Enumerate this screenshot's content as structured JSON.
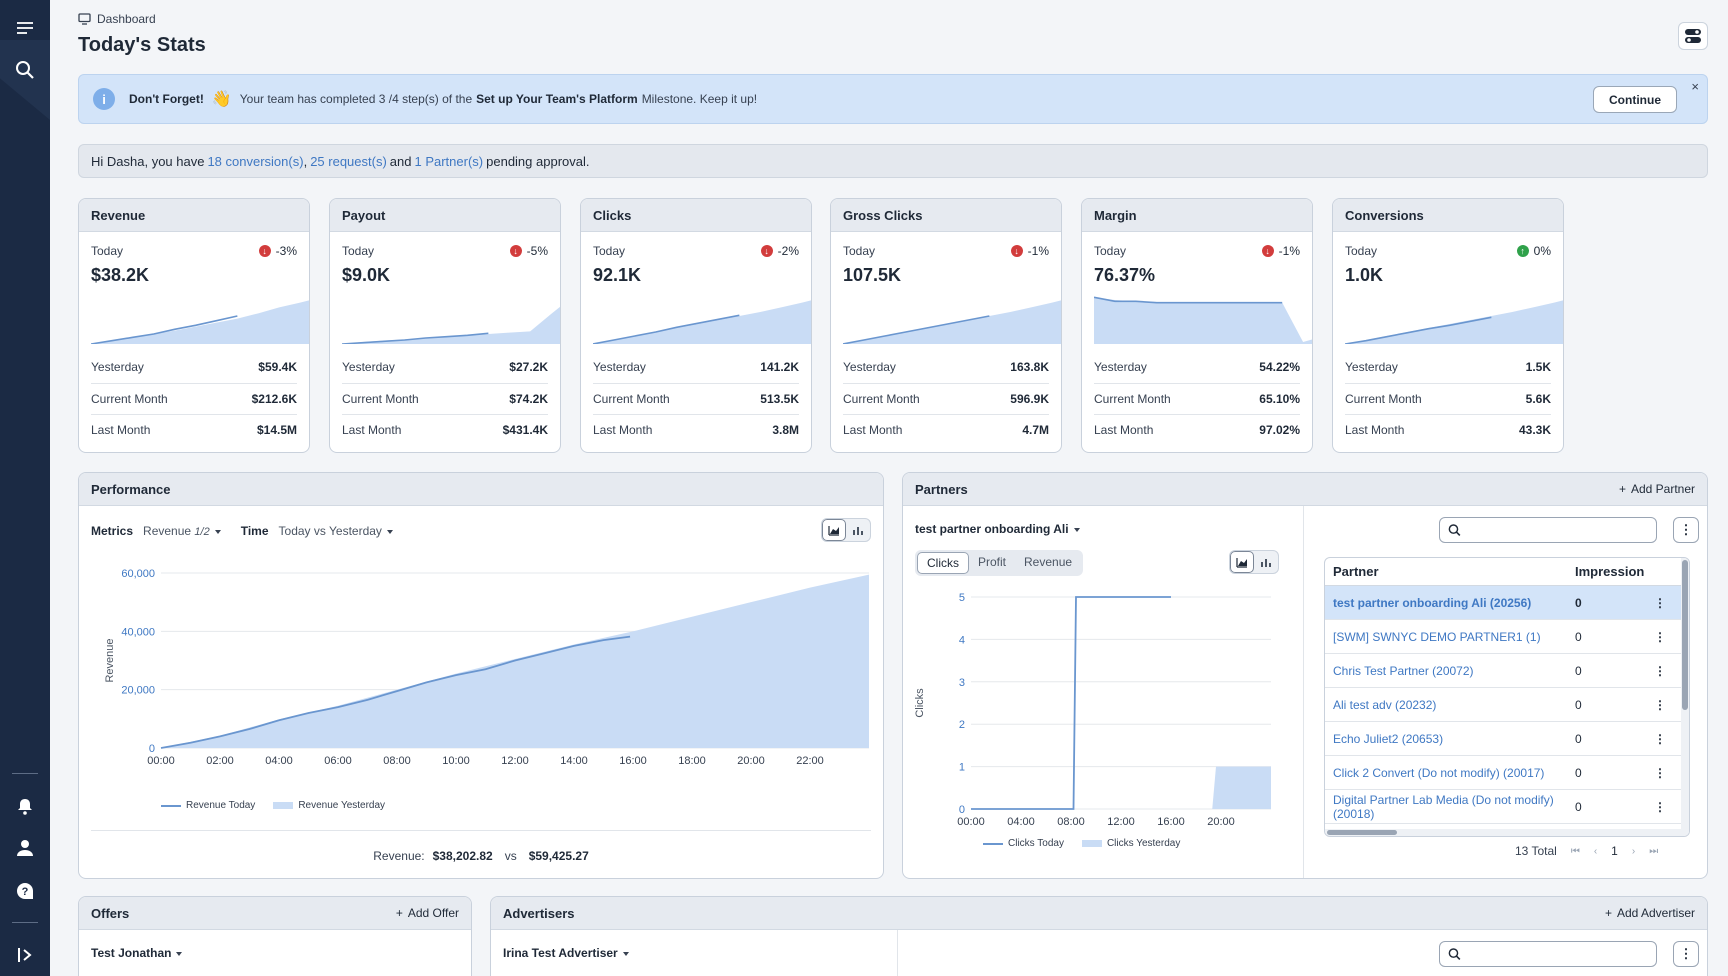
{
  "header": {
    "breadcrumb": "Dashboard",
    "title": "Today's Stats"
  },
  "alert": {
    "lead": "Don't Forget!",
    "emoji": "👋",
    "text_1": "Your team has completed 3 /4 step(s) of the",
    "milestone": "Set up Your Team's Platform",
    "text_2": "Milestone. Keep it up!",
    "continue_label": "Continue",
    "close_glyph": "×"
  },
  "greeting": {
    "prefix": "Hi Dasha, you have",
    "conversions": "18 conversion(s)",
    "comma": ",",
    "requests": "25 request(s)",
    "and": "and",
    "partners": "1 Partner(s)",
    "suffix": "pending approval."
  },
  "colors": {
    "rail": "#1b2a44",
    "accent": "#3f78c3",
    "area": "#c9dcf5",
    "line": "#6a96cf",
    "down": "#d23c3c",
    "up": "#2fa14a"
  },
  "stats": [
    {
      "title": "Revenue",
      "today_label": "Today",
      "value": "$38.2K",
      "delta": "-3%",
      "trend": "down",
      "rows": [
        {
          "label": "Yesterday",
          "value": "$59.4K"
        },
        {
          "label": "Current Month",
          "value": "$212.6K"
        },
        {
          "label": "Last Month",
          "value": "$14.5M"
        }
      ]
    },
    {
      "title": "Payout",
      "today_label": "Today",
      "value": "$9.0K",
      "delta": "-5%",
      "trend": "down",
      "rows": [
        {
          "label": "Yesterday",
          "value": "$27.2K"
        },
        {
          "label": "Current Month",
          "value": "$74.2K"
        },
        {
          "label": "Last Month",
          "value": "$431.4K"
        }
      ]
    },
    {
      "title": "Clicks",
      "today_label": "Today",
      "value": "92.1K",
      "delta": "-2%",
      "trend": "down",
      "rows": [
        {
          "label": "Yesterday",
          "value": "141.2K"
        },
        {
          "label": "Current Month",
          "value": "513.5K"
        },
        {
          "label": "Last Month",
          "value": "3.8M"
        }
      ]
    },
    {
      "title": "Gross Clicks",
      "today_label": "Today",
      "value": "107.5K",
      "delta": "-1%",
      "trend": "down",
      "rows": [
        {
          "label": "Yesterday",
          "value": "163.8K"
        },
        {
          "label": "Current Month",
          "value": "596.9K"
        },
        {
          "label": "Last Month",
          "value": "4.7M"
        }
      ]
    },
    {
      "title": "Margin",
      "today_label": "Today",
      "value": "76.37%",
      "delta": "-1%",
      "trend": "down",
      "rows": [
        {
          "label": "Yesterday",
          "value": "54.22%"
        },
        {
          "label": "Current Month",
          "value": "65.10%"
        },
        {
          "label": "Last Month",
          "value": "97.02%"
        }
      ]
    },
    {
      "title": "Conversions",
      "today_label": "Today",
      "value": "1.0K",
      "delta": "0%",
      "trend": "up",
      "rows": [
        {
          "label": "Yesterday",
          "value": "1.5K"
        },
        {
          "label": "Current Month",
          "value": "5.6K"
        },
        {
          "label": "Last Month",
          "value": "43.3K"
        }
      ]
    }
  ],
  "performance": {
    "title": "Performance",
    "metrics_label": "Metrics",
    "metrics_value": "Revenue",
    "metrics_page": "1/2",
    "time_label": "Time",
    "time_value": "Today vs Yesterday",
    "summary_label": "Revenue:",
    "summary_today": "$38,202.82",
    "summary_vs": "vs",
    "summary_yesterday": "$59,425.27"
  },
  "partners": {
    "title": "Partners",
    "add_label": "Add Partner",
    "selected_partner": "test partner onboarding Ali",
    "tabs": [
      "Clicks",
      "Profit",
      "Revenue"
    ],
    "search_placeholder": "",
    "table": {
      "columns": [
        "Partner",
        "Impression"
      ],
      "rows": [
        {
          "name": "test partner onboarding Ali (20256)",
          "impressions": "0",
          "selected": true
        },
        {
          "name": "[SWM] SWNYC DEMO PARTNER1 (1)",
          "impressions": "0"
        },
        {
          "name": "Chris Test Partner (20072)",
          "impressions": "0"
        },
        {
          "name": "Ali test adv (20232)",
          "impressions": "0"
        },
        {
          "name": "Echo Juliet2 (20653)",
          "impressions": "0"
        },
        {
          "name": "Click 2 Convert (Do not modify) (20017)",
          "impressions": "0"
        },
        {
          "name": "Digital Partner Lab Media (Do not modify) (20018)",
          "impressions": "0"
        }
      ]
    },
    "total": "13 Total",
    "page": "1",
    "pager_glyphs": {
      "first": "⏮",
      "prev": "‹",
      "next": "›",
      "last": "⏭"
    }
  },
  "offers": {
    "title": "Offers",
    "add_label": "Add Offer",
    "selected": "Test Jonathan"
  },
  "advertisers": {
    "title": "Advertisers",
    "add_label": "Add Advertiser",
    "selected": "Irina Test Advertiser",
    "search_placeholder": ""
  },
  "chart_data": [
    {
      "type": "area",
      "name": "performance",
      "x": [
        "00:00",
        "02:00",
        "04:00",
        "06:00",
        "08:00",
        "10:00",
        "12:00",
        "14:00",
        "16:00",
        "18:00",
        "20:00",
        "22:00"
      ],
      "xlim": [
        0,
        24
      ],
      "ylim": [
        0,
        60000
      ],
      "yticks": [
        "0",
        "20,000",
        "40,000",
        "60,000"
      ],
      "ylabel": "Revenue",
      "series": [
        {
          "name": "Revenue Today",
          "style": "line",
          "points": [
            [
              0,
              0
            ],
            [
              1,
              1800
            ],
            [
              2,
              4000
            ],
            [
              3,
              6500
            ],
            [
              4,
              9500
            ],
            [
              5,
              12000
            ],
            [
              6,
              14000
            ],
            [
              7,
              16500
            ],
            [
              8,
              19500
            ],
            [
              9,
              22500
            ],
            [
              10,
              25000
            ],
            [
              11,
              27000
            ],
            [
              12,
              30000
            ],
            [
              13,
              32500
            ],
            [
              14,
              35000
            ],
            [
              15,
              37000
            ],
            [
              15.9,
              38200
            ]
          ]
        },
        {
          "name": "Revenue Yesterday",
          "style": "area",
          "points": [
            [
              0,
              0
            ],
            [
              2,
              4200
            ],
            [
              4,
              9800
            ],
            [
              6,
              14500
            ],
            [
              8,
              20000
            ],
            [
              10,
              25500
            ],
            [
              12,
              30500
            ],
            [
              14,
              35500
            ],
            [
              16,
              40000
            ],
            [
              18,
              45000
            ],
            [
              20,
              50000
            ],
            [
              22,
              55000
            ],
            [
              24,
              59425
            ]
          ]
        }
      ]
    },
    {
      "type": "line",
      "name": "partners-clicks",
      "x": [
        "00:00",
        "04:00",
        "08:00",
        "12:00",
        "16:00",
        "20:00"
      ],
      "xlim": [
        0,
        24
      ],
      "ylim": [
        0,
        5
      ],
      "yticks": [
        "0",
        "1",
        "2",
        "3",
        "4",
        "5"
      ],
      "ylabel": "Clicks",
      "series": [
        {
          "name": "Clicks Today",
          "style": "line",
          "points": [
            [
              0,
              0
            ],
            [
              8.2,
              0
            ],
            [
              8.4,
              5
            ],
            [
              16,
              5
            ]
          ]
        },
        {
          "name": "Clicks Yesterday",
          "style": "area",
          "points": [
            [
              19.3,
              0
            ],
            [
              19.6,
              1
            ],
            [
              24,
              1
            ],
            [
              24,
              0
            ]
          ]
        }
      ]
    },
    {
      "type": "area",
      "name": "stat-sparklines",
      "series": [
        {
          "name": "Revenue",
          "today": [
            0,
            5,
            10,
            15,
            22,
            28,
            35,
            42
          ],
          "yesterday": [
            0,
            5,
            10,
            15,
            20,
            26,
            32,
            38,
            46,
            55,
            62,
            70
          ]
        },
        {
          "name": "Payout",
          "today": [
            0,
            2,
            4,
            6,
            9,
            11,
            13,
            16
          ],
          "yesterday": [
            0,
            3,
            5,
            7,
            9,
            11,
            13,
            15,
            17,
            19,
            45,
            70
          ]
        },
        {
          "name": "Clicks",
          "today": [
            0,
            6,
            12,
            18,
            25,
            31,
            37,
            43
          ],
          "yesterday": [
            0,
            6,
            12,
            18,
            24,
            30,
            36,
            42,
            48,
            55,
            62,
            70
          ]
        },
        {
          "name": "Gross Clicks",
          "today": [
            0,
            6,
            12,
            18,
            24,
            30,
            36,
            42
          ],
          "yesterday": [
            0,
            6,
            12,
            18,
            24,
            30,
            36,
            42,
            48,
            55,
            62,
            70
          ]
        },
        {
          "name": "Margin",
          "today": [
            70,
            64,
            64,
            62,
            62,
            62,
            62,
            62,
            62,
            62
          ],
          "yesterday": [
            70,
            66,
            64,
            63,
            62,
            62,
            62,
            62,
            62,
            62,
            3,
            12
          ]
        },
        {
          "name": "Conversions",
          "today": [
            0,
            5,
            11,
            17,
            23,
            28,
            34,
            40
          ],
          "yesterday": [
            0,
            6,
            12,
            18,
            24,
            30,
            36,
            42,
            48,
            55,
            62,
            70
          ]
        }
      ]
    }
  ]
}
